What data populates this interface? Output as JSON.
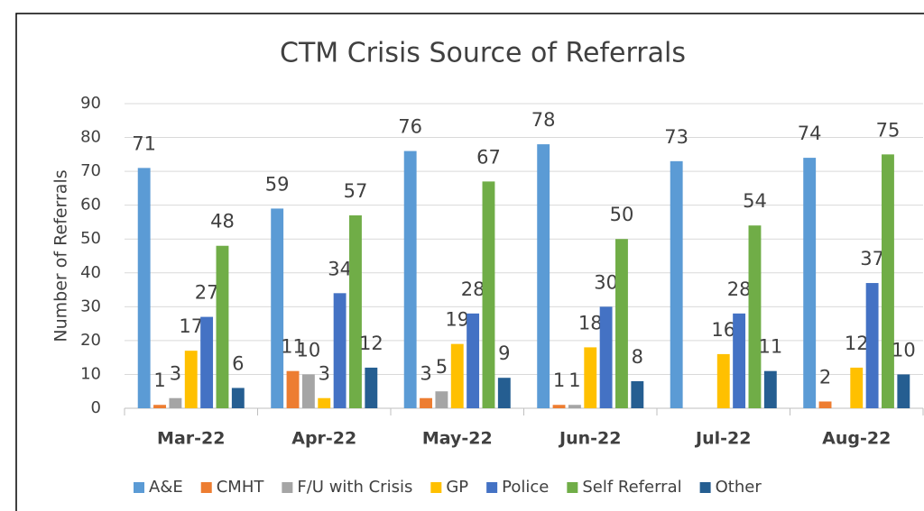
{
  "chart_data": {
    "type": "bar",
    "title": "CTM Crisis Source of Referrals",
    "y_label": "Number of Referrals",
    "categories": [
      "Mar-22",
      "Apr-22",
      "May-22",
      "Jun-22",
      "Jul-22",
      "Aug-22"
    ],
    "series": [
      {
        "name": "A&E",
        "color": "#5b9bd5",
        "values": [
          71,
          59,
          76,
          78,
          73,
          74
        ]
      },
      {
        "name": "CMHT",
        "color": "#ed7d31",
        "values": [
          1,
          11,
          3,
          1,
          null,
          2
        ]
      },
      {
        "name": "F/U with Crisis",
        "color": "#a5a5a5",
        "values": [
          3,
          10,
          5,
          1,
          null,
          null
        ]
      },
      {
        "name": "GP",
        "color": "#ffc000",
        "values": [
          17,
          3,
          19,
          18,
          16,
          12
        ]
      },
      {
        "name": "Police",
        "color": "#4472c4",
        "values": [
          27,
          34,
          28,
          30,
          28,
          37
        ]
      },
      {
        "name": "Self Referral",
        "color": "#70ad47",
        "values": [
          48,
          57,
          67,
          50,
          54,
          75
        ]
      },
      {
        "name": "Other",
        "color": "#255e91",
        "values": [
          6,
          12,
          9,
          8,
          11,
          10
        ]
      }
    ],
    "ylim": [
      0,
      90
    ],
    "yticks": [
      0,
      10,
      20,
      30,
      40,
      50,
      60,
      70,
      80,
      90
    ],
    "grid": true,
    "legend": "bottom"
  }
}
